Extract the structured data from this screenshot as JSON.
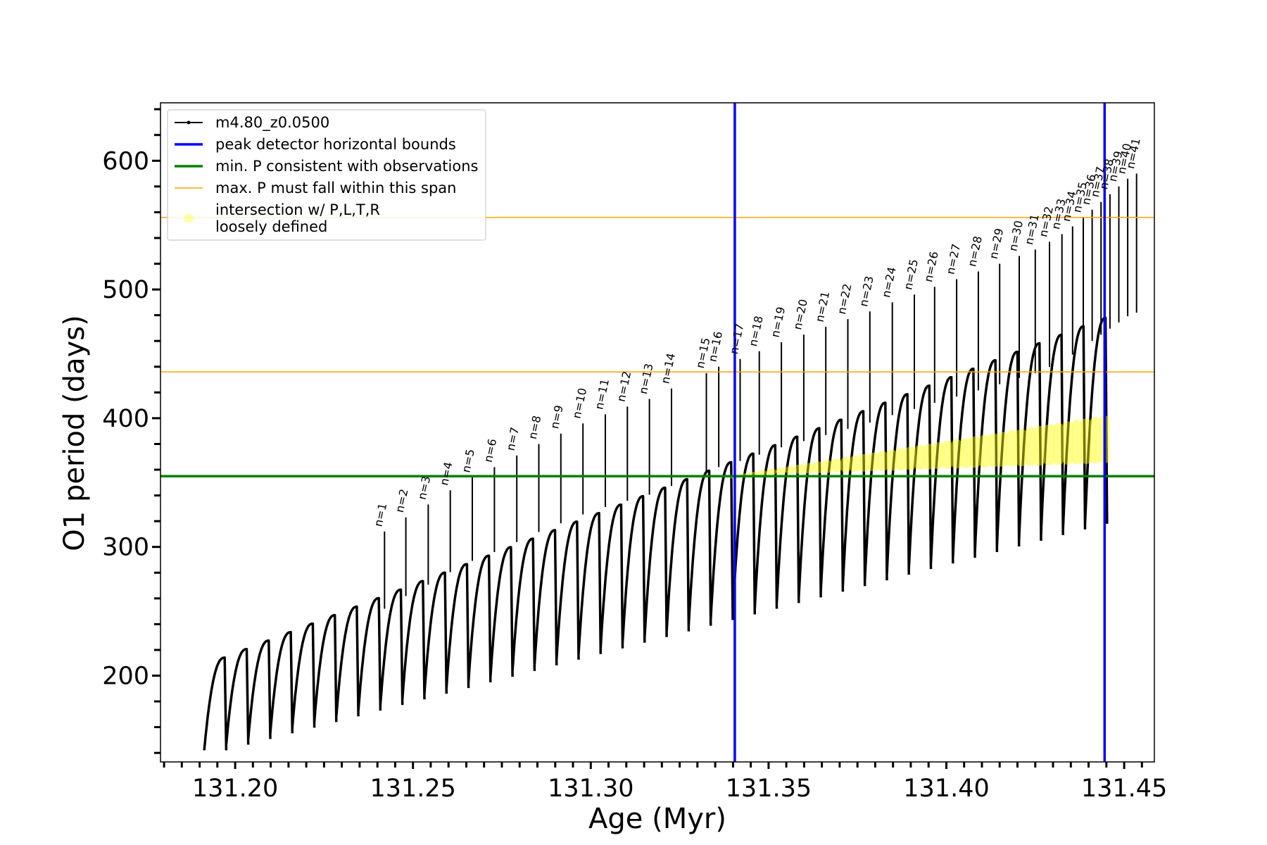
{
  "chart_data": {
    "type": "line",
    "xlabel": "Age (Myr)",
    "ylabel": "O1 period (days)",
    "xlim": [
      131.179,
      131.4585
    ],
    "ylim": [
      133,
      645
    ],
    "xticks": [
      131.2,
      131.25,
      131.3,
      131.35,
      131.4,
      131.45
    ],
    "xtick_labels": [
      "131.20",
      "131.25",
      "131.30",
      "131.35",
      "131.40",
      "131.45"
    ],
    "yticks": [
      200,
      300,
      400,
      500,
      600
    ],
    "ytick_labels": [
      "200",
      "300",
      "400",
      "500",
      "600"
    ],
    "legend": {
      "placement": "upper-left",
      "entries": [
        {
          "label": "m4.80_z0.0500",
          "style": "line-dot",
          "color": "#000000"
        },
        {
          "label": "peak detector horizontal bounds",
          "style": "line",
          "color": "#0000ff"
        },
        {
          "label": "min. P consistent with observations",
          "style": "line",
          "color": "#008000"
        },
        {
          "label": "max. P must fall within this span",
          "style": "line",
          "color": "#ffa500"
        },
        {
          "label": "intersection w/ P,L,T,R",
          "label2": "loosely defined",
          "style": "marker",
          "color": "#ffff00"
        }
      ]
    },
    "series": [
      {
        "name": "m4.80_z0.0500",
        "color": "#000000",
        "pulses": {
          "count": 41,
          "start_x": 131.1913,
          "end_x": 131.4452,
          "upper_start": 214,
          "upper_end": 478,
          "lower_start": 142,
          "lower_end": 318,
          "peak_start": 190,
          "peak_end": 590
        }
      }
    ],
    "vlines": [
      {
        "x": 131.3405,
        "color": "#0000ff",
        "name": "peak detector horizontal bounds"
      },
      {
        "x": 131.4445,
        "color": "#0000ff",
        "name": "peak detector horizontal bounds"
      }
    ],
    "hlines": [
      {
        "y": 355,
        "color": "#008000",
        "name": "min. P consistent with observations"
      },
      {
        "y": 436,
        "color": "#ffa500",
        "name": "max. P must fall within this span"
      },
      {
        "y": 556,
        "color": "#ffa500",
        "name": "max. P must fall within this span"
      }
    ],
    "peaks": [
      {
        "label": "n=1",
        "x": 131.242,
        "y": 312
      },
      {
        "label": "n=2",
        "x": 131.248,
        "y": 323
      },
      {
        "label": "n=3",
        "x": 131.2543,
        "y": 333
      },
      {
        "label": "n=4",
        "x": 131.2605,
        "y": 344
      },
      {
        "label": "n=5",
        "x": 131.2667,
        "y": 354
      },
      {
        "label": "n=6",
        "x": 131.2729,
        "y": 362
      },
      {
        "label": "n=7",
        "x": 131.2792,
        "y": 371
      },
      {
        "label": "n=8",
        "x": 131.2854,
        "y": 380
      },
      {
        "label": "n=9",
        "x": 131.2916,
        "y": 388
      },
      {
        "label": "n=10",
        "x": 131.2978,
        "y": 396
      },
      {
        "label": "n=11",
        "x": 131.3041,
        "y": 403
      },
      {
        "label": "n=12",
        "x": 131.3103,
        "y": 409
      },
      {
        "label": "n=13",
        "x": 131.3165,
        "y": 415
      },
      {
        "label": "n=14",
        "x": 131.3227,
        "y": 423
      },
      {
        "label": "n=15",
        "x": 131.3325,
        "y": 435
      },
      {
        "label": "n=16",
        "x": 131.336,
        "y": 440
      },
      {
        "label": "n=17",
        "x": 131.342,
        "y": 446
      },
      {
        "label": "n=18",
        "x": 131.3474,
        "y": 452
      },
      {
        "label": "n=19",
        "x": 131.3536,
        "y": 459
      },
      {
        "label": "n=20",
        "x": 131.3599,
        "y": 465
      },
      {
        "label": "n=21",
        "x": 131.3661,
        "y": 471
      },
      {
        "label": "n=22",
        "x": 131.3723,
        "y": 477
      },
      {
        "label": "n=23",
        "x": 131.3785,
        "y": 483
      },
      {
        "label": "n=24",
        "x": 131.3848,
        "y": 490
      },
      {
        "label": "n=25",
        "x": 131.391,
        "y": 496
      },
      {
        "label": "n=26",
        "x": 131.3967,
        "y": 502
      },
      {
        "label": "n=27",
        "x": 131.4029,
        "y": 508
      },
      {
        "label": "n=28",
        "x": 131.409,
        "y": 514
      },
      {
        "label": "n=29",
        "x": 131.415,
        "y": 520
      },
      {
        "label": "n=30",
        "x": 131.4205,
        "y": 526
      },
      {
        "label": "n=31",
        "x": 131.425,
        "y": 531
      },
      {
        "label": "n=32",
        "x": 131.429,
        "y": 537
      },
      {
        "label": "n=33",
        "x": 131.4325,
        "y": 543
      },
      {
        "label": "n=34",
        "x": 131.4355,
        "y": 549
      },
      {
        "label": "n=35",
        "x": 131.4385,
        "y": 556
      },
      {
        "label": "n=36",
        "x": 131.441,
        "y": 562
      },
      {
        "label": "n=37",
        "x": 131.4435,
        "y": 568
      },
      {
        "label": "n=38",
        "x": 131.446,
        "y": 574
      },
      {
        "label": "n=39",
        "x": 131.4485,
        "y": 580
      },
      {
        "label": "n=40",
        "x": 131.451,
        "y": 586
      },
      {
        "label": "n=41",
        "x": 131.4535,
        "y": 590
      }
    ],
    "intersection_region": {
      "x_start": 131.3405,
      "x_end": 131.4445,
      "y_low_start": 355,
      "y_low_end": 365,
      "y_high_start": 356,
      "y_high_end": 402
    }
  }
}
